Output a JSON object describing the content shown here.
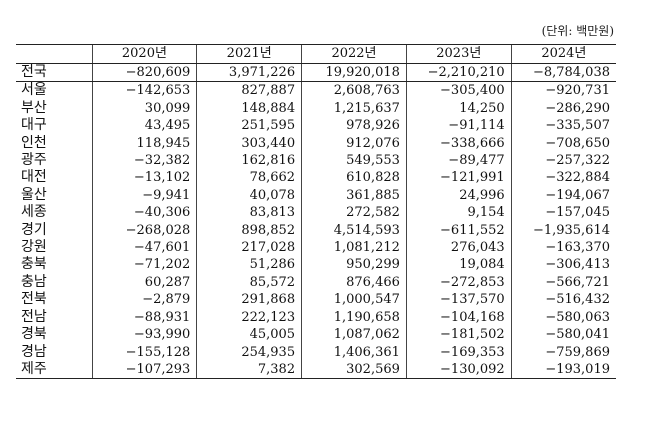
{
  "unit_label": "(단위: 백만원)",
  "columns": [
    "",
    "2020년",
    "2021년",
    "2022년",
    "2023년",
    "2024년"
  ],
  "rows": [
    {
      "region": "전국",
      "values": [
        "−820,609",
        "3,971,226",
        "19,920,018",
        "−2,210,210",
        "−8,784,038"
      ]
    },
    {
      "region": "서울",
      "values": [
        "−142,653",
        "827,887",
        "2,608,763",
        "−305,400",
        "−920,731"
      ]
    },
    {
      "region": "부산",
      "values": [
        "30,099",
        "148,884",
        "1,215,637",
        "14,250",
        "−286,290"
      ]
    },
    {
      "region": "대구",
      "values": [
        "43,495",
        "251,595",
        "978,926",
        "−91,114",
        "−335,507"
      ]
    },
    {
      "region": "인천",
      "values": [
        "118,945",
        "303,440",
        "912,076",
        "−338,666",
        "−708,650"
      ]
    },
    {
      "region": "광주",
      "values": [
        "−32,382",
        "162,816",
        "549,553",
        "−89,477",
        "−257,322"
      ]
    },
    {
      "region": "대전",
      "values": [
        "−13,102",
        "78,662",
        "610,828",
        "−121,991",
        "−322,884"
      ]
    },
    {
      "region": "울산",
      "values": [
        "−9,941",
        "40,078",
        "361,885",
        "24,996",
        "−194,067"
      ]
    },
    {
      "region": "세종",
      "values": [
        "−40,306",
        "83,813",
        "272,582",
        "9,154",
        "−157,045"
      ]
    },
    {
      "region": "경기",
      "values": [
        "−268,028",
        "898,852",
        "4,514,593",
        "−611,552",
        "−1,935,614"
      ]
    },
    {
      "region": "강원",
      "values": [
        "−47,601",
        "217,028",
        "1,081,212",
        "276,043",
        "−163,370"
      ]
    },
    {
      "region": "충북",
      "values": [
        "−71,202",
        "51,286",
        "950,299",
        "19,084",
        "−306,413"
      ]
    },
    {
      "region": "충남",
      "values": [
        "60,287",
        "85,572",
        "876,466",
        "−272,853",
        "−566,721"
      ]
    },
    {
      "region": "전북",
      "values": [
        "−2,879",
        "291,868",
        "1,000,547",
        "−137,570",
        "−516,432"
      ]
    },
    {
      "region": "전남",
      "values": [
        "−88,931",
        "222,123",
        "1,190,658",
        "−104,168",
        "−580,063"
      ]
    },
    {
      "region": "경북",
      "values": [
        "−93,990",
        "45,005",
        "1,087,062",
        "−181,502",
        "−580,041"
      ]
    },
    {
      "region": "경남",
      "values": [
        "−155,128",
        "254,935",
        "1,406,361",
        "−169,353",
        "−759,869"
      ]
    },
    {
      "region": "제주",
      "values": [
        "−107,293",
        "7,382",
        "302,569",
        "−130,092",
        "−193,019"
      ]
    }
  ]
}
